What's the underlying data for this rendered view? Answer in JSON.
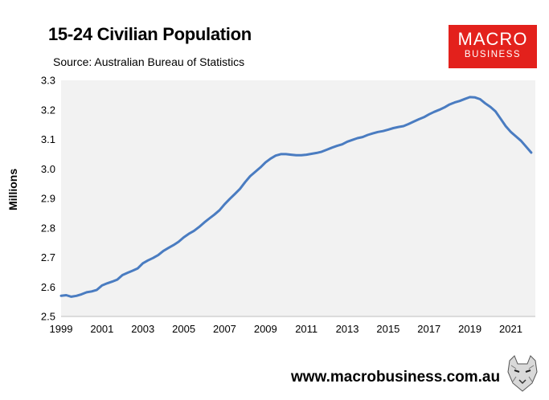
{
  "title": "15-24 Civilian Population",
  "source": "Source: Australian Bureau of Statistics",
  "logo": {
    "line1": "MACRO",
    "line2": "BUSINESS"
  },
  "footer_url": "www.macrobusiness.com.au",
  "colors": {
    "line": "#4a7cc1",
    "plot_bg": "#f2f2f2",
    "logo_bg": "#e3211c"
  },
  "chart_data": {
    "type": "line",
    "title": "15-24 Civilian Population",
    "xlabel": "",
    "ylabel": "Millions",
    "xlim": [
      1999,
      2022.2
    ],
    "ylim": [
      2.5,
      3.3
    ],
    "yticks": [
      "2.5",
      "2.6",
      "2.7",
      "2.8",
      "2.9",
      "3.0",
      "3.1",
      "3.2",
      "3.3"
    ],
    "xticks": [
      "1999",
      "2001",
      "2003",
      "2005",
      "2007",
      "2009",
      "2011",
      "2013",
      "2015",
      "2017",
      "2019",
      "2021"
    ],
    "grid": false,
    "series": [
      {
        "name": "15-24 Civilian Population",
        "x": [
          1999.0,
          1999.25,
          1999.5,
          1999.75,
          2000.0,
          2000.25,
          2000.5,
          2000.75,
          2001.0,
          2001.25,
          2001.5,
          2001.75,
          2002.0,
          2002.25,
          2002.5,
          2002.75,
          2003.0,
          2003.25,
          2003.5,
          2003.75,
          2004.0,
          2004.25,
          2004.5,
          2004.75,
          2005.0,
          2005.25,
          2005.5,
          2005.75,
          2006.0,
          2006.25,
          2006.5,
          2006.75,
          2007.0,
          2007.25,
          2007.5,
          2007.75,
          2008.0,
          2008.25,
          2008.5,
          2008.75,
          2009.0,
          2009.25,
          2009.5,
          2009.75,
          2010.0,
          2010.25,
          2010.5,
          2010.75,
          2011.0,
          2011.25,
          2011.5,
          2011.75,
          2012.0,
          2012.25,
          2012.5,
          2012.75,
          2013.0,
          2013.25,
          2013.5,
          2013.75,
          2014.0,
          2014.25,
          2014.5,
          2014.75,
          2015.0,
          2015.25,
          2015.5,
          2015.75,
          2016.0,
          2016.25,
          2016.5,
          2016.75,
          2017.0,
          2017.25,
          2017.5,
          2017.75,
          2018.0,
          2018.25,
          2018.5,
          2018.75,
          2019.0,
          2019.25,
          2019.5,
          2019.75,
          2020.0,
          2020.25,
          2020.5,
          2020.75,
          2021.0,
          2021.25,
          2021.5,
          2021.75,
          2022.0
        ],
        "values": [
          2.57,
          2.572,
          2.567,
          2.57,
          2.575,
          2.582,
          2.585,
          2.59,
          2.605,
          2.612,
          2.618,
          2.625,
          2.64,
          2.648,
          2.655,
          2.663,
          2.68,
          2.69,
          2.698,
          2.708,
          2.722,
          2.732,
          2.742,
          2.753,
          2.768,
          2.78,
          2.79,
          2.803,
          2.818,
          2.832,
          2.845,
          2.86,
          2.88,
          2.898,
          2.915,
          2.932,
          2.955,
          2.975,
          2.99,
          3.005,
          3.022,
          3.035,
          3.045,
          3.05,
          3.05,
          3.048,
          3.046,
          3.046,
          3.048,
          3.051,
          3.054,
          3.058,
          3.065,
          3.072,
          3.078,
          3.083,
          3.092,
          3.098,
          3.104,
          3.108,
          3.115,
          3.12,
          3.125,
          3.128,
          3.133,
          3.138,
          3.142,
          3.145,
          3.152,
          3.16,
          3.168,
          3.175,
          3.185,
          3.193,
          3.2,
          3.208,
          3.218,
          3.225,
          3.23,
          3.237,
          3.243,
          3.242,
          3.236,
          3.222,
          3.21,
          3.195,
          3.17,
          3.145,
          3.125,
          3.11,
          3.095,
          3.075,
          3.055
        ]
      }
    ]
  }
}
